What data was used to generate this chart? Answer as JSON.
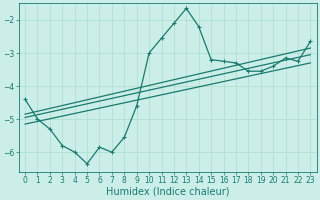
{
  "xlabel": "Humidex (Indice chaleur)",
  "ylabel": "",
  "bg_color": "#cceee8",
  "grid_color": "#aaddcc",
  "line_color": "#1a7a6e",
  "xlim": [
    -0.5,
    23.5
  ],
  "ylim": [
    -6.6,
    -1.5
  ],
  "yticks": [
    -6,
    -5,
    -4,
    -3,
    -2
  ],
  "xticks": [
    0,
    1,
    2,
    3,
    4,
    5,
    6,
    7,
    8,
    9,
    10,
    11,
    12,
    13,
    14,
    15,
    16,
    17,
    18,
    19,
    20,
    21,
    22,
    23
  ],
  "curve1_x": [
    0,
    1,
    2,
    3,
    4,
    5,
    6,
    7,
    8,
    9,
    10,
    11,
    12,
    13,
    14,
    15,
    16,
    17,
    18,
    19,
    20,
    21,
    22,
    23
  ],
  "curve1_y": [
    -4.4,
    -5.0,
    -5.3,
    -5.8,
    -6.0,
    -6.35,
    -5.85,
    -6.0,
    -5.55,
    -4.6,
    -3.0,
    -2.55,
    -2.1,
    -1.65,
    -2.2,
    -3.2,
    -3.25,
    -3.3,
    -3.55,
    -3.55,
    -3.4,
    -3.15,
    -3.25,
    -2.65
  ],
  "line1_x": [
    0,
    23
  ],
  "line1_y": [
    -4.85,
    -2.85
  ],
  "line2_x": [
    0,
    23
  ],
  "line2_y": [
    -4.95,
    -3.05
  ],
  "line3_x": [
    0,
    23
  ],
  "line3_y": [
    -5.15,
    -3.3
  ],
  "marker_size": 3.0,
  "line_width": 0.9,
  "tick_fontsize": 5.5,
  "label_fontsize": 7.0
}
